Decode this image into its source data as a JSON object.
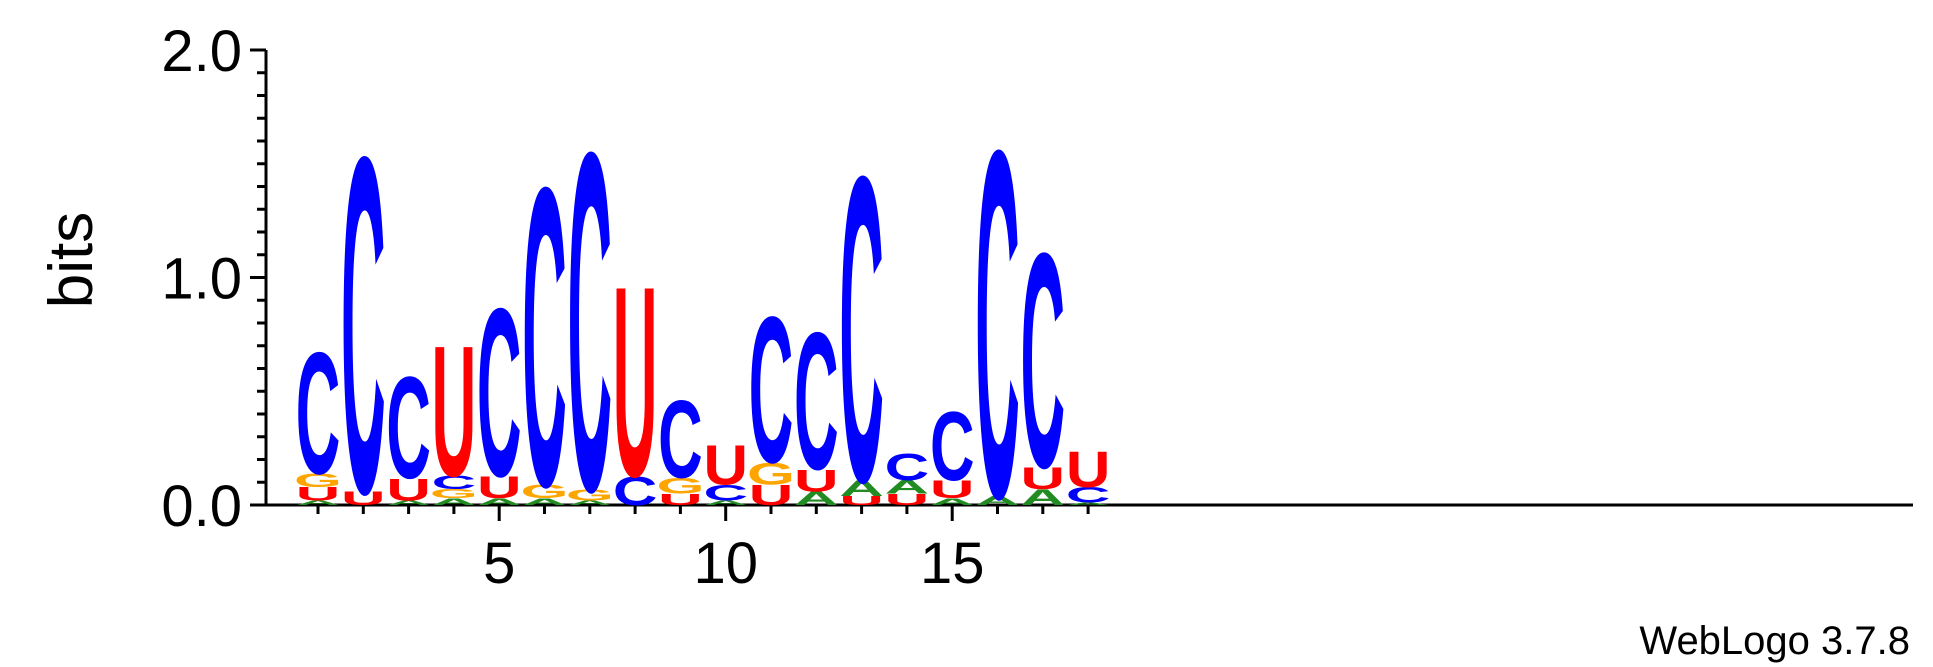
{
  "chart_data": {
    "type": "sequence-logo",
    "ylabel": "bits",
    "ylim": [
      0,
      2
    ],
    "y_ticks": [
      "0.0",
      "1.0",
      "2.0"
    ],
    "x_ticks": [
      5,
      10,
      15
    ],
    "x_range": [
      1,
      18
    ],
    "footer": "WebLogo 3.7.8",
    "colors": {
      "A": "#228B22",
      "C": "#0000FF",
      "G": "#FFA500",
      "U": "#FF0000"
    },
    "positions": [
      {
        "pos": 1,
        "stack": [
          [
            "A",
            0.02
          ],
          [
            "U",
            0.06
          ],
          [
            "G",
            0.06
          ],
          [
            "C",
            0.55
          ]
        ]
      },
      {
        "pos": 2,
        "stack": [
          [
            "U",
            0.06
          ],
          [
            "C",
            1.52
          ]
        ]
      },
      {
        "pos": 3,
        "stack": [
          [
            "A",
            0.02
          ],
          [
            "U",
            0.1
          ],
          [
            "C",
            0.46
          ]
        ]
      },
      {
        "pos": 4,
        "stack": [
          [
            "A",
            0.03
          ],
          [
            "G",
            0.04
          ],
          [
            "C",
            0.06
          ],
          [
            "U",
            0.59
          ]
        ]
      },
      {
        "pos": 5,
        "stack": [
          [
            "A",
            0.03
          ],
          [
            "U",
            0.1
          ],
          [
            "C",
            0.76
          ]
        ]
      },
      {
        "pos": 6,
        "stack": [
          [
            "A",
            0.03
          ],
          [
            "G",
            0.06
          ],
          [
            "C",
            1.35
          ]
        ]
      },
      {
        "pos": 7,
        "stack": [
          [
            "A",
            0.02
          ],
          [
            "G",
            0.05
          ],
          [
            "C",
            1.53
          ]
        ]
      },
      {
        "pos": 8,
        "stack": [
          [
            "C",
            0.13
          ],
          [
            "U",
            0.86
          ]
        ]
      },
      {
        "pos": 9,
        "stack": [
          [
            "U",
            0.05
          ],
          [
            "G",
            0.07
          ],
          [
            "C",
            0.35
          ]
        ]
      },
      {
        "pos": 10,
        "stack": [
          [
            "A",
            0.02
          ],
          [
            "C",
            0.07
          ],
          [
            "U",
            0.18
          ]
        ]
      },
      {
        "pos": 11,
        "stack": [
          [
            "U",
            0.09
          ],
          [
            "G",
            0.1
          ],
          [
            "C",
            0.66
          ]
        ]
      },
      {
        "pos": 12,
        "stack": [
          [
            "A",
            0.06
          ],
          [
            "U",
            0.1
          ],
          [
            "C",
            0.62
          ]
        ]
      },
      {
        "pos": 13,
        "stack": [
          [
            "U",
            0.04
          ],
          [
            "A",
            0.07
          ],
          [
            "C",
            1.38
          ]
        ]
      },
      {
        "pos": 14,
        "stack": [
          [
            "U",
            0.05
          ],
          [
            "A",
            0.06
          ],
          [
            "C",
            0.12
          ]
        ]
      },
      {
        "pos": 15,
        "stack": [
          [
            "A",
            0.03
          ],
          [
            "U",
            0.08
          ],
          [
            "C",
            0.31
          ]
        ]
      },
      {
        "pos": 16,
        "stack": [
          [
            "A",
            0.04
          ],
          [
            "C",
            1.57
          ]
        ]
      },
      {
        "pos": 17,
        "stack": [
          [
            "A",
            0.07
          ],
          [
            "U",
            0.1
          ],
          [
            "C",
            0.97
          ]
        ]
      },
      {
        "pos": 18,
        "stack": [
          [
            "A",
            0.01
          ],
          [
            "C",
            0.07
          ],
          [
            "U",
            0.16
          ]
        ]
      }
    ]
  }
}
